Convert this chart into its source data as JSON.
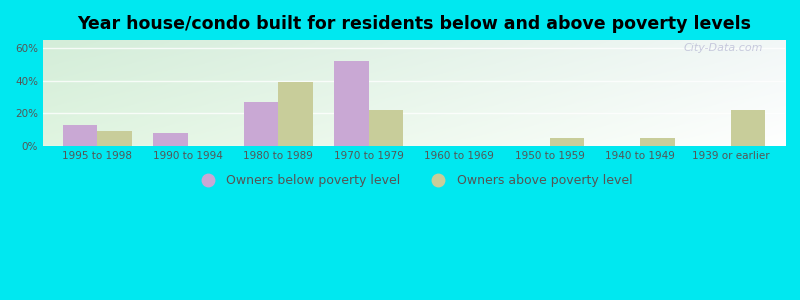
{
  "title": "Year house/condo built for residents below and above poverty levels",
  "categories": [
    "1995 to 1998",
    "1990 to 1994",
    "1980 to 1989",
    "1970 to 1979",
    "1960 to 1969",
    "1950 to 1959",
    "1940 to 1949",
    "1939 or earlier"
  ],
  "below_poverty": [
    13,
    8,
    27,
    52,
    0,
    0,
    0,
    0
  ],
  "above_poverty": [
    9,
    0,
    39,
    22,
    0,
    5,
    5,
    22
  ],
  "below_color": "#c9a8d4",
  "above_color": "#c8cd9a",
  "ylabel_ticks": [
    "0%",
    "20%",
    "40%",
    "60%"
  ],
  "ytick_vals": [
    0,
    20,
    40,
    60
  ],
  "ylim": [
    0,
    65
  ],
  "background_outer": "#00e8f0",
  "legend_below": "Owners below poverty level",
  "legend_above": "Owners above poverty level",
  "bar_width": 0.38,
  "title_fontsize": 12.5,
  "tick_fontsize": 7.5,
  "legend_fontsize": 9
}
